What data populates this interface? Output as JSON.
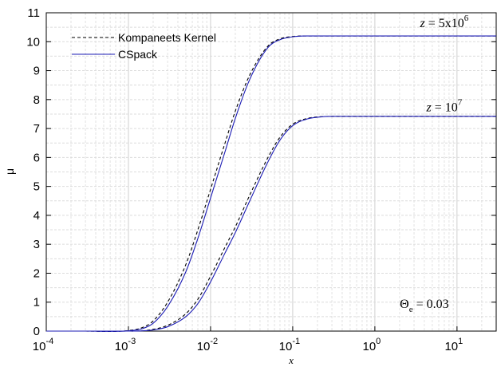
{
  "chart_data": {
    "type": "line",
    "xlabel": "x",
    "ylabel": "μ",
    "xscale": "log",
    "xlim": [
      0.0001,
      30
    ],
    "ylim": [
      0,
      11
    ],
    "grid": true,
    "legend_position": "top-left",
    "x_ticks": [
      {
        "value": 0.0001,
        "base": "10",
        "exp": "-4"
      },
      {
        "value": 0.001,
        "base": "10",
        "exp": "-3"
      },
      {
        "value": 0.01,
        "base": "10",
        "exp": "-2"
      },
      {
        "value": 0.1,
        "base": "10",
        "exp": "-1"
      },
      {
        "value": 1,
        "base": "10",
        "exp": "0"
      },
      {
        "value": 10,
        "base": "10",
        "exp": "1"
      }
    ],
    "y_ticks": [
      0,
      1,
      2,
      3,
      4,
      5,
      6,
      7,
      8,
      9,
      10,
      11
    ],
    "x": [
      0.0001,
      0.0003,
      0.001,
      0.0015,
      0.002,
      0.003,
      0.005,
      0.007,
      0.01,
      0.015,
      0.02,
      0.03,
      0.05,
      0.07,
      0.1,
      0.15,
      0.2,
      0.3,
      0.5,
      1,
      3,
      10,
      30
    ],
    "series": [
      {
        "name": "Kompaneets Kernel",
        "group": "z1",
        "color": "#000000",
        "dash": "4,3",
        "values": [
          0,
          0,
          0.02,
          0.13,
          0.35,
          1.0,
          2.3,
          3.5,
          4.9,
          6.5,
          7.6,
          8.85,
          9.85,
          10.1,
          10.18,
          10.2,
          10.2,
          10.2,
          10.2,
          10.2,
          10.2,
          10.2,
          10.2
        ]
      },
      {
        "name": "CSpack",
        "group": "z1",
        "color": "#1c1cb4",
        "dash": "",
        "values": [
          0,
          0,
          0.01,
          0.09,
          0.27,
          0.85,
          2.05,
          3.2,
          4.6,
          6.2,
          7.35,
          8.7,
          9.8,
          10.07,
          10.17,
          10.2,
          10.2,
          10.2,
          10.2,
          10.2,
          10.2,
          10.2,
          10.2
        ]
      },
      {
        "name": "Kompaneets Kernel",
        "group": "z2",
        "color": "#000000",
        "dash": "4,3",
        "values": [
          0,
          0,
          0,
          0.01,
          0.06,
          0.2,
          0.6,
          1.1,
          1.9,
          2.9,
          3.6,
          4.7,
          6.0,
          6.7,
          7.15,
          7.35,
          7.4,
          7.42,
          7.42,
          7.42,
          7.42,
          7.42,
          7.42
        ]
      },
      {
        "name": "CSpack",
        "group": "z2",
        "color": "#1c1cb4",
        "dash": "",
        "values": [
          0,
          0,
          0,
          0.01,
          0.04,
          0.15,
          0.5,
          0.95,
          1.7,
          2.7,
          3.4,
          4.5,
          5.85,
          6.6,
          7.1,
          7.33,
          7.39,
          7.42,
          7.42,
          7.42,
          7.42,
          7.42,
          7.42
        ]
      }
    ],
    "legend": [
      {
        "label": "Kompaneets Kernel",
        "color": "#000000",
        "dash": "4,3"
      },
      {
        "label": "CSpack",
        "color": "#1c1cb4",
        "dash": ""
      }
    ],
    "annotations": [
      {
        "id": "z1",
        "var": "z",
        "rel": "=",
        "mant": "5x10",
        "exp": "6",
        "x": 7,
        "y": 10.5
      },
      {
        "id": "z2",
        "var": "z",
        "rel": "=",
        "mant": "10",
        "exp": "7",
        "x": 7,
        "y": 7.6
      },
      {
        "id": "theta",
        "sym": "Θ",
        "sub": "e",
        "rel": "=",
        "val": "0.03",
        "x": 4,
        "y": 0.8
      }
    ]
  }
}
